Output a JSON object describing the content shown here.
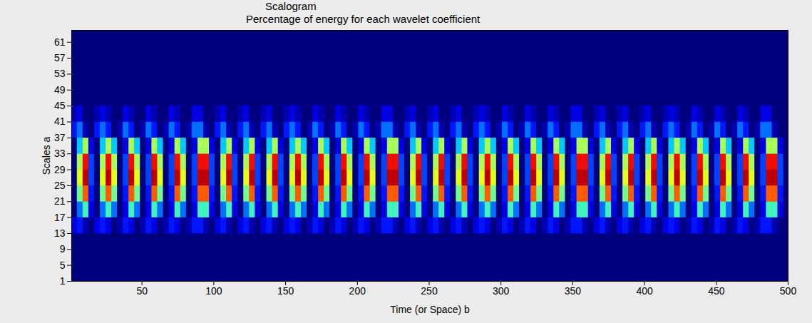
{
  "chart_data": {
    "type": "heatmap",
    "title": "Scalogram",
    "subtitle": "Percentage of energy for each wavelet coefficient",
    "x_label": "Time (or Space) b",
    "y_label": "Scales a",
    "xlim": [
      1,
      500
    ],
    "ylim": [
      1,
      64
    ],
    "xticks": [
      50,
      100,
      150,
      200,
      250,
      300,
      350,
      400,
      450,
      500
    ],
    "yticks": [
      1,
      5,
      9,
      13,
      17,
      21,
      25,
      29,
      33,
      37,
      41,
      45,
      49,
      53,
      57,
      61
    ],
    "grid": false,
    "color": "jet",
    "cells": {
      "x_edges": [
        1,
        5,
        9,
        13,
        17,
        21,
        25,
        29,
        33,
        37,
        41,
        45,
        49,
        53,
        57,
        61,
        65,
        69,
        73,
        77,
        81,
        85,
        89,
        93,
        97,
        101,
        105,
        109,
        113,
        117,
        121,
        125,
        129,
        133,
        137,
        141,
        145,
        149,
        153,
        157,
        161,
        165,
        169,
        173,
        177,
        181,
        185,
        189,
        193,
        197,
        201,
        205,
        209,
        213,
        217,
        221,
        225,
        229,
        233,
        237,
        241,
        245,
        249,
        253,
        257,
        261,
        265,
        269,
        273,
        277,
        281,
        285,
        289,
        293,
        297,
        301,
        305,
        309,
        313,
        317,
        321,
        325,
        329,
        333,
        337,
        341,
        345,
        349,
        353,
        357,
        361,
        365,
        369,
        373,
        377,
        381,
        385,
        389,
        393,
        397,
        401,
        405,
        409,
        413,
        417,
        421,
        425,
        429,
        433,
        437,
        441,
        445,
        449,
        453,
        457,
        461,
        465,
        469,
        473,
        477,
        481,
        485,
        489,
        493,
        497,
        501
      ],
      "y_edges": [
        13,
        17,
        21,
        25,
        29,
        33,
        37,
        41,
        45
      ],
      "values": [
        [
          0.002,
          0.003,
          0.001,
          0,
          0.002,
          0.003,
          0.002,
          0,
          0.001,
          0.003,
          0.002,
          0,
          0.001,
          0.003,
          0.002,
          0,
          0.001,
          0.003,
          0.002,
          0,
          0.001,
          0.003,
          0.003,
          0.001,
          0,
          0.002,
          0.003,
          0.001,
          0,
          0.002,
          0.003,
          0.001,
          0,
          0.002,
          0.003,
          0.001,
          0,
          0.002,
          0.003,
          0.002,
          0,
          0.001,
          0.003,
          0.002,
          0,
          0.001,
          0.003,
          0.002,
          0,
          0.001,
          0.003,
          0.002,
          0,
          0.001,
          0.003,
          0.003,
          0.001,
          0,
          0.002,
          0.003,
          0.001,
          0,
          0.002,
          0.003,
          0.001,
          0,
          0.002,
          0.003,
          0.001,
          0,
          0.002,
          0.003,
          0.002,
          0,
          0.001,
          0.003,
          0.002,
          0,
          0.001,
          0.003,
          0.002,
          0,
          0.001,
          0.003,
          0.002,
          0,
          0.001,
          0.003,
          0.003,
          0.001,
          0,
          0.002,
          0.003,
          0.001,
          0,
          0.002,
          0.003,
          0.001,
          0,
          0.002,
          0.003,
          0.001,
          0,
          0.002,
          0.003,
          0.002,
          0,
          0.001,
          0.003,
          0.002,
          0,
          0.001,
          0.003,
          0.002,
          0,
          0.001,
          0.003,
          0.002,
          0,
          0.001,
          0.003,
          0.003,
          0.001,
          0,
          0
        ],
        [
          0,
          0.005,
          0.009,
          0.002,
          0,
          0.005,
          0.009,
          0.005,
          0,
          0.002,
          0.009,
          0.005,
          0,
          0.002,
          0.009,
          0.005,
          0,
          0.002,
          0.009,
          0.005,
          0,
          0.002,
          0.009,
          0.009,
          0.002,
          0,
          0.005,
          0.009,
          0.002,
          0,
          0.005,
          0.009,
          0.002,
          0,
          0.005,
          0.009,
          0.002,
          0,
          0.005,
          0.009,
          0.005,
          0,
          0.002,
          0.009,
          0.005,
          0,
          0.002,
          0.009,
          0.005,
          0,
          0.002,
          0.009,
          0.005,
          0,
          0.002,
          0.009,
          0.009,
          0.002,
          0,
          0.005,
          0.009,
          0.002,
          0,
          0.005,
          0.009,
          0.002,
          0,
          0.005,
          0.009,
          0.002,
          0,
          0.005,
          0.009,
          0.005,
          0,
          0.002,
          0.009,
          0.005,
          0,
          0.002,
          0.009,
          0.005,
          0,
          0.002,
          0.009,
          0.005,
          0,
          0.002,
          0.009,
          0.009,
          0.002,
          0,
          0.005,
          0.009,
          0.002,
          0,
          0.005,
          0.009,
          0.002,
          0,
          0.005,
          0.009,
          0.002,
          0,
          0.005,
          0.009,
          0.005,
          0,
          0.002,
          0.009,
          0.005,
          0,
          0.002,
          0.009,
          0.005,
          0,
          0.002,
          0.009,
          0.005,
          0,
          0.002,
          0.009,
          0.009,
          0.002,
          0
        ],
        [
          0,
          0.01,
          0.016,
          0.003,
          0,
          0.01,
          0.016,
          0.01,
          0,
          0.003,
          0.016,
          0.01,
          0,
          0.003,
          0.016,
          0.01,
          0,
          0.003,
          0.016,
          0.01,
          0,
          0.003,
          0.016,
          0.016,
          0.003,
          0,
          0.01,
          0.016,
          0.003,
          0,
          0.01,
          0.016,
          0.003,
          0,
          0.01,
          0.016,
          0.003,
          0,
          0.01,
          0.016,
          0.01,
          0,
          0.003,
          0.016,
          0.01,
          0,
          0.003,
          0.016,
          0.01,
          0,
          0.003,
          0.016,
          0.01,
          0,
          0.003,
          0.016,
          0.016,
          0.003,
          0,
          0.01,
          0.016,
          0.003,
          0,
          0.01,
          0.016,
          0.003,
          0,
          0.01,
          0.016,
          0.003,
          0,
          0.01,
          0.016,
          0.01,
          0,
          0.003,
          0.016,
          0.01,
          0,
          0.003,
          0.016,
          0.01,
          0,
          0.003,
          0.016,
          0.01,
          0,
          0.003,
          0.016,
          0.016,
          0.003,
          0,
          0.01,
          0.016,
          0.003,
          0,
          0.01,
          0.016,
          0.003,
          0,
          0.01,
          0.016,
          0.003,
          0,
          0.01,
          0.016,
          0.01,
          0,
          0.003,
          0.016,
          0.01,
          0,
          0.003,
          0.016,
          0.01,
          0,
          0.003,
          0.016,
          0.01,
          0,
          0.003,
          0.016,
          0.016,
          0.003,
          0
        ],
        [
          0,
          0.012,
          0.02,
          0.004,
          0,
          0.012,
          0.02,
          0.012,
          0,
          0.004,
          0.02,
          0.012,
          0,
          0.004,
          0.02,
          0.012,
          0,
          0.004,
          0.02,
          0.012,
          0,
          0.004,
          0.02,
          0.02,
          0.004,
          0,
          0.012,
          0.02,
          0.004,
          0,
          0.012,
          0.02,
          0.004,
          0,
          0.012,
          0.02,
          0.004,
          0,
          0.012,
          0.02,
          0.012,
          0,
          0.004,
          0.02,
          0.012,
          0,
          0.004,
          0.02,
          0.012,
          0,
          0.004,
          0.02,
          0.012,
          0,
          0.004,
          0.02,
          0.02,
          0.004,
          0,
          0.012,
          0.02,
          0.004,
          0,
          0.012,
          0.02,
          0.004,
          0,
          0.012,
          0.02,
          0.004,
          0,
          0.012,
          0.02,
          0.012,
          0,
          0.004,
          0.02,
          0.012,
          0,
          0.004,
          0.02,
          0.012,
          0,
          0.004,
          0.02,
          0.012,
          0,
          0.004,
          0.02,
          0.02,
          0.004,
          0,
          0.012,
          0.02,
          0.004,
          0,
          0.012,
          0.02,
          0.004,
          0,
          0.012,
          0.02,
          0.004,
          0,
          0.012,
          0.02,
          0.012,
          0,
          0.004,
          0.02,
          0.012,
          0,
          0.004,
          0.02,
          0.012,
          0,
          0.004,
          0.02,
          0.012,
          0,
          0.004,
          0.02,
          0.02,
          0.004,
          0
        ],
        [
          0,
          0.011,
          0.018,
          0.004,
          0,
          0.011,
          0.018,
          0.011,
          0,
          0.004,
          0.018,
          0.011,
          0,
          0.004,
          0.018,
          0.011,
          0,
          0.004,
          0.018,
          0.011,
          0,
          0.004,
          0.018,
          0.018,
          0.004,
          0,
          0.011,
          0.018,
          0.004,
          0,
          0.011,
          0.018,
          0.004,
          0,
          0.011,
          0.018,
          0.004,
          0,
          0.011,
          0.018,
          0.011,
          0,
          0.004,
          0.018,
          0.011,
          0,
          0.004,
          0.018,
          0.011,
          0,
          0.004,
          0.018,
          0.011,
          0,
          0.004,
          0.018,
          0.018,
          0.004,
          0,
          0.011,
          0.018,
          0.004,
          0,
          0.011,
          0.018,
          0.004,
          0,
          0.011,
          0.018,
          0.004,
          0,
          0.011,
          0.018,
          0.011,
          0,
          0.004,
          0.018,
          0.011,
          0,
          0.004,
          0.018,
          0.011,
          0,
          0.004,
          0.018,
          0.011,
          0,
          0.004,
          0.018,
          0.018,
          0.004,
          0,
          0.011,
          0.018,
          0.004,
          0,
          0.011,
          0.018,
          0.004,
          0,
          0.011,
          0.018,
          0.004,
          0,
          0.011,
          0.018,
          0.011,
          0,
          0.004,
          0.018,
          0.011,
          0,
          0.004,
          0.018,
          0.011,
          0,
          0.004,
          0.018,
          0.011,
          0,
          0.004,
          0.018,
          0.018,
          0.004,
          0
        ],
        [
          0,
          0.007,
          0.011,
          0.002,
          0,
          0.007,
          0.011,
          0.007,
          0,
          0.002,
          0.011,
          0.007,
          0,
          0.002,
          0.011,
          0.007,
          0,
          0.002,
          0.011,
          0.007,
          0,
          0.002,
          0.011,
          0.011,
          0.002,
          0,
          0.007,
          0.011,
          0.002,
          0,
          0.007,
          0.011,
          0.002,
          0,
          0.007,
          0.011,
          0.002,
          0,
          0.007,
          0.011,
          0.007,
          0,
          0.002,
          0.011,
          0.007,
          0,
          0.002,
          0.011,
          0.007,
          0,
          0.002,
          0.011,
          0.007,
          0,
          0.002,
          0.011,
          0.011,
          0.002,
          0,
          0.007,
          0.011,
          0.002,
          0,
          0.007,
          0.011,
          0.002,
          0,
          0.007,
          0.011,
          0.002,
          0,
          0.007,
          0.011,
          0.007,
          0,
          0.002,
          0.011,
          0.007,
          0,
          0.002,
          0.011,
          0.007,
          0,
          0.002,
          0.011,
          0.007,
          0,
          0.002,
          0.011,
          0.011,
          0.002,
          0,
          0.007,
          0.011,
          0.002,
          0,
          0.007,
          0.011,
          0.002,
          0,
          0.007,
          0.011,
          0.002,
          0,
          0.007,
          0.011,
          0.007,
          0,
          0.002,
          0.011,
          0.007,
          0,
          0.002,
          0.011,
          0.007,
          0,
          0.002,
          0.011,
          0.007,
          0,
          0.002,
          0.011,
          0.011,
          0.002,
          0
        ],
        [
          0.003,
          0.005,
          0.001,
          0,
          0.003,
          0.005,
          0.003,
          0,
          0.001,
          0.005,
          0.003,
          0,
          0.001,
          0.005,
          0.003,
          0,
          0.001,
          0.005,
          0.003,
          0,
          0.001,
          0.005,
          0.005,
          0.001,
          0,
          0.003,
          0.005,
          0.001,
          0,
          0.003,
          0.005,
          0.001,
          0,
          0.003,
          0.005,
          0.001,
          0,
          0.003,
          0.005,
          0.003,
          0,
          0.001,
          0.005,
          0.003,
          0,
          0.001,
          0.005,
          0.003,
          0,
          0.001,
          0.005,
          0.003,
          0,
          0.001,
          0.005,
          0.005,
          0.001,
          0,
          0.003,
          0.005,
          0.001,
          0,
          0.003,
          0.005,
          0.001,
          0,
          0.003,
          0.005,
          0.001,
          0,
          0.003,
          0.005,
          0.003,
          0,
          0.001,
          0.005,
          0.003,
          0,
          0.001,
          0.005,
          0.003,
          0,
          0.001,
          0.005,
          0.003,
          0,
          0.001,
          0.005,
          0.005,
          0.001,
          0,
          0.003,
          0.005,
          0.001,
          0,
          0.003,
          0.005,
          0.001,
          0,
          0.003,
          0.005,
          0.001,
          0,
          0.003,
          0.005,
          0.003,
          0,
          0.001,
          0.005,
          0.003,
          0,
          0.001,
          0.005,
          0.003,
          0,
          0.001,
          0.005,
          0.003,
          0,
          0.001,
          0.005,
          0.005,
          0.001,
          0,
          0
        ],
        [
          0.001,
          0.002,
          0,
          0,
          0.001,
          0.002,
          0.001,
          0,
          0,
          0.002,
          0.001,
          0,
          0,
          0.002,
          0.001,
          0,
          0,
          0.002,
          0.001,
          0,
          0,
          0.002,
          0.002,
          0,
          0,
          0.001,
          0.002,
          0,
          0,
          0.001,
          0.002,
          0,
          0,
          0.001,
          0.002,
          0,
          0,
          0.001,
          0.002,
          0.001,
          0,
          0,
          0.002,
          0.001,
          0,
          0,
          0.002,
          0.001,
          0,
          0,
          0.002,
          0.001,
          0,
          0,
          0.002,
          0.002,
          0,
          0,
          0.001,
          0.002,
          0,
          0,
          0.001,
          0.002,
          0,
          0,
          0.001,
          0.002,
          0,
          0,
          0.001,
          0.002,
          0.001,
          0,
          0,
          0.002,
          0.001,
          0,
          0,
          0.002,
          0.001,
          0,
          0,
          0.002,
          0.001,
          0,
          0,
          0.002,
          0.002,
          0,
          0,
          0.001,
          0.002,
          0,
          0,
          0.001,
          0.002,
          0,
          0,
          0.001,
          0.002,
          0,
          0,
          0.001,
          0.002,
          0.001,
          0,
          0,
          0.002,
          0.001,
          0,
          0,
          0.002,
          0.001,
          0,
          0,
          0.002,
          0.001,
          0,
          0,
          0.002,
          0.002,
          0,
          0,
          0
        ]
      ]
    }
  }
}
